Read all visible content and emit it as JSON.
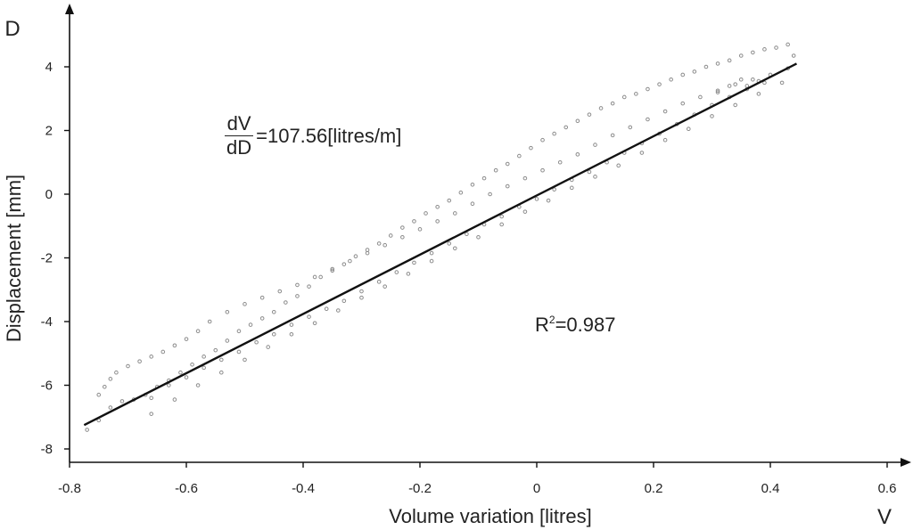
{
  "chart_data": {
    "type": "scatter",
    "xlabel": "Volume variation [litres]",
    "ylabel": "Displacement [mm]",
    "x_axis_letter": "V",
    "y_axis_letter": "D",
    "xlim": [
      -0.8,
      0.6
    ],
    "ylim": [
      -8,
      5
    ],
    "x_ticks": [
      -0.8,
      -0.6,
      -0.4,
      -0.2,
      0,
      0.2,
      0.4,
      0.6
    ],
    "x_tick_labels": [
      "-0.8",
      "-0.6",
      "-0.4",
      "-0.2",
      "0",
      "0.2",
      "0.4",
      "0.6"
    ],
    "y_ticks": [
      -8,
      -6,
      -4,
      -2,
      0,
      2,
      4
    ],
    "y_tick_labels": [
      "-8",
      "-6",
      "-4",
      "-2",
      "0",
      "2",
      "4"
    ],
    "grid": false,
    "series": [
      {
        "kind": "points",
        "color": "#8c8c8c",
        "x": [
          -0.77,
          -0.75,
          -0.73,
          -0.71,
          -0.69,
          -0.67,
          -0.65,
          -0.63,
          -0.61,
          -0.59,
          -0.57,
          -0.55,
          -0.53,
          -0.51,
          -0.49,
          -0.47,
          -0.45,
          -0.43,
          -0.41,
          -0.39,
          -0.37,
          -0.35,
          -0.33,
          -0.31,
          -0.29,
          -0.27,
          -0.25,
          -0.23,
          -0.21,
          -0.19,
          -0.17,
          -0.15,
          -0.13,
          -0.11,
          -0.09,
          -0.07,
          -0.05,
          -0.03,
          -0.01,
          0.01,
          0.03,
          0.05,
          0.07,
          0.09,
          0.11,
          0.13,
          0.15,
          0.17,
          0.19,
          0.21,
          0.23,
          0.25,
          0.27,
          0.29,
          0.31,
          0.33,
          0.35,
          0.37,
          0.39,
          0.41,
          0.43,
          -0.66,
          -0.62,
          -0.58,
          -0.54,
          -0.5,
          -0.46,
          -0.42,
          -0.38,
          -0.34,
          -0.3,
          -0.26,
          -0.22,
          -0.18,
          -0.14,
          -0.1,
          -0.06,
          -0.02,
          0.02,
          0.06,
          0.1,
          0.14,
          0.18,
          0.22,
          0.26,
          0.3,
          0.34,
          0.38,
          0.42,
          -0.66,
          -0.63,
          -0.6,
          -0.57,
          -0.54,
          -0.51,
          -0.48,
          -0.45,
          -0.42,
          -0.39,
          -0.36,
          -0.33,
          -0.3,
          -0.27,
          -0.24,
          -0.21,
          -0.18,
          -0.15,
          -0.12,
          -0.09,
          -0.06,
          -0.03,
          0.0,
          0.03,
          0.06,
          0.09,
          0.12,
          0.15,
          0.18,
          0.21,
          0.24,
          0.27,
          0.3,
          0.33,
          0.36,
          0.39,
          -0.75,
          -0.74,
          -0.73,
          -0.72,
          -0.7,
          -0.68,
          -0.66,
          -0.64,
          -0.62,
          -0.6,
          -0.58,
          -0.56,
          -0.53,
          -0.5,
          -0.47,
          -0.44,
          -0.41,
          -0.38,
          -0.35,
          -0.32,
          -0.29,
          -0.26,
          -0.23,
          -0.2,
          -0.17,
          -0.14,
          -0.11,
          -0.08,
          -0.05,
          -0.02,
          0.01,
          0.04,
          0.07,
          0.1,
          0.13,
          0.16,
          0.19,
          0.22,
          0.25,
          0.28,
          0.31,
          0.34,
          0.37,
          0.4,
          0.43,
          0.44,
          0.35,
          0.33,
          0.31,
          0.36,
          0.38
        ],
        "y": [
          -7.4,
          -7.1,
          -6.7,
          -6.5,
          -6.45,
          -6.3,
          -6.05,
          -5.85,
          -5.6,
          -5.35,
          -5.1,
          -4.9,
          -4.6,
          -4.3,
          -4.1,
          -3.9,
          -3.7,
          -3.4,
          -3.2,
          -2.9,
          -2.6,
          -2.4,
          -2.2,
          -1.95,
          -1.75,
          -1.55,
          -1.3,
          -1.05,
          -0.85,
          -0.6,
          -0.4,
          -0.2,
          0.05,
          0.3,
          0.5,
          0.75,
          0.95,
          1.2,
          1.45,
          1.7,
          1.9,
          2.1,
          2.3,
          2.5,
          2.7,
          2.85,
          3.05,
          3.15,
          3.3,
          3.45,
          3.6,
          3.75,
          3.85,
          4.0,
          4.1,
          4.2,
          4.35,
          4.45,
          4.55,
          4.6,
          4.7,
          -6.9,
          -6.45,
          -6.0,
          -5.6,
          -5.2,
          -4.8,
          -4.4,
          -4.05,
          -3.65,
          -3.25,
          -2.9,
          -2.5,
          -2.1,
          -1.7,
          -1.35,
          -0.95,
          -0.55,
          -0.2,
          0.2,
          0.55,
          0.9,
          1.3,
          1.7,
          2.05,
          2.45,
          2.8,
          3.15,
          3.5,
          -6.4,
          -6.0,
          -5.75,
          -5.45,
          -5.2,
          -4.95,
          -4.65,
          -4.4,
          -4.1,
          -3.85,
          -3.6,
          -3.35,
          -3.05,
          -2.75,
          -2.45,
          -2.15,
          -1.85,
          -1.55,
          -1.25,
          -0.95,
          -0.7,
          -0.4,
          -0.15,
          0.15,
          0.45,
          0.7,
          1.0,
          1.3,
          1.6,
          1.9,
          2.2,
          2.5,
          2.8,
          3.05,
          3.3,
          3.5,
          -6.3,
          -6.05,
          -5.8,
          -5.6,
          -5.4,
          -5.25,
          -5.1,
          -4.95,
          -4.75,
          -4.55,
          -4.3,
          -4.0,
          -3.7,
          -3.45,
          -3.25,
          -3.05,
          -2.85,
          -2.6,
          -2.35,
          -2.1,
          -1.85,
          -1.6,
          -1.35,
          -1.1,
          -0.85,
          -0.6,
          -0.3,
          0.0,
          0.25,
          0.5,
          0.75,
          1.0,
          1.25,
          1.55,
          1.85,
          2.1,
          2.35,
          2.6,
          2.85,
          3.05,
          3.25,
          3.45,
          3.6,
          3.75,
          3.95,
          4.35,
          3.6,
          3.4,
          3.2,
          3.4,
          3.55
        ]
      },
      {
        "kind": "fit-line",
        "color": "#111111",
        "x": [
          -0.775,
          0.445
        ],
        "y": [
          -7.25,
          4.1
        ]
      }
    ],
    "annotations": {
      "slope_numerator": "dV",
      "slope_denominator": "dD",
      "slope_value": "=107.56[litres/m]",
      "r2_prefix": "R",
      "r2_sup": "2",
      "r2_value": "=0.987"
    }
  }
}
